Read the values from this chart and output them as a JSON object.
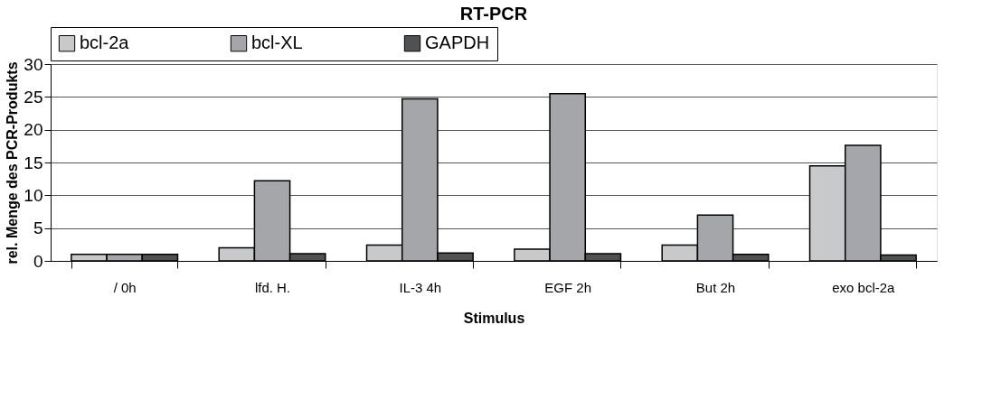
{
  "chart_data": {
    "type": "bar",
    "title": "RT-PCR",
    "xlabel": "Stimulus",
    "ylabel": "rel. Menge des PCR-Produkts",
    "categories": [
      "/ 0h",
      "lfd. H.",
      "IL-3 4h",
      "EGF 2h",
      "But 2h",
      "exo bcl-2a"
    ],
    "series": [
      {
        "name": "bcl-2a",
        "color": "#c8c9cb",
        "values": [
          1.0,
          2.0,
          2.4,
          1.8,
          2.4,
          14.5
        ]
      },
      {
        "name": "bcl-XL",
        "color": "#a5a6a9",
        "values": [
          1.0,
          12.2,
          24.7,
          25.5,
          7.0,
          17.6
        ]
      },
      {
        "name": "GAPDH",
        "color": "#505153",
        "values": [
          1.0,
          1.1,
          1.2,
          1.1,
          1.0,
          0.9
        ]
      }
    ],
    "ylim": [
      0,
      30
    ],
    "yticks": [
      0,
      5,
      10,
      15,
      20,
      25,
      30
    ],
    "grid": "y",
    "legend": "top"
  }
}
